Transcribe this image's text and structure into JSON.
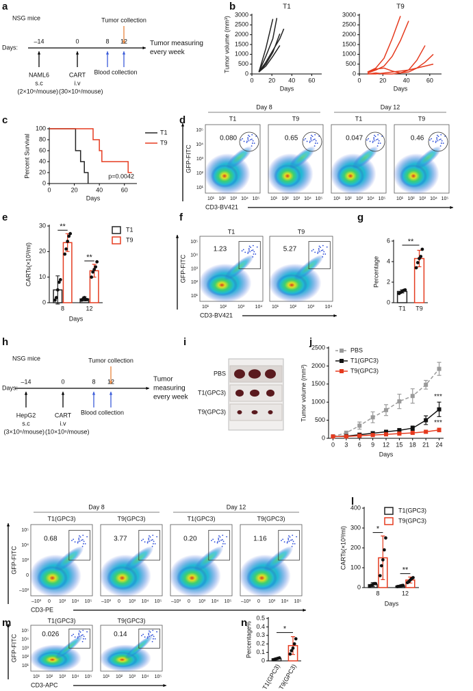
{
  "panel_labels": [
    "a",
    "b",
    "c",
    "d",
    "e",
    "f",
    "g",
    "h",
    "i",
    "j",
    "l",
    "m",
    "n"
  ],
  "timelines": [
    {
      "title": "NSG mice",
      "days_label": "Days:",
      "days": [
        "–14",
        "0",
        "8",
        "12"
      ],
      "injections": [
        {
          "cells": "NAML6",
          "route": "s.c",
          "dose": "(2×10⁶/mouse)"
        },
        {
          "cells": "CART",
          "route": "i.v",
          "dose": "(30×10⁶/mouse)"
        }
      ],
      "blood": "Blood collection",
      "tumor": "Tumor collection",
      "measuring": [
        "Tumor measuring",
        "every week"
      ]
    },
    {
      "title": "NSG mice",
      "days_label": "Days:",
      "days": [
        "–14",
        "0",
        "8",
        "12"
      ],
      "injections": [
        {
          "cells": "HepG2",
          "route": "s.c",
          "dose": "(3×10⁶/mouse)"
        },
        {
          "cells": "CART",
          "route": "i.v",
          "dose": "(10×10⁶/mouse)"
        }
      ],
      "blood": "Blood collection",
      "tumor": "Tumor collection",
      "measuring": [
        "Tumor",
        "measuring",
        "every week"
      ]
    }
  ],
  "tumor_photo": {
    "rows": [
      "PBS",
      "T1(GPC3)",
      "T9(GPC3)"
    ]
  },
  "flow_panels": [
    {
      "groups": [
        {
          "label": "Day 8",
          "columns": [
            "T1",
            "T9"
          ]
        },
        {
          "label": "Day 12",
          "columns": [
            "T1",
            "T9"
          ]
        }
      ],
      "gates": [
        "0.080",
        "0.65",
        "0.047",
        "0.46"
      ],
      "ylabel": "GFP-FITC",
      "xlabel": "CD3-BV421",
      "xticks": [
        "10¹",
        "10²",
        "10³",
        "10⁴",
        "10⁵"
      ],
      "yticks": [
        "10¹",
        "10²",
        "10³",
        "10⁴",
        "10⁵"
      ]
    },
    {
      "columns": [
        "T1",
        "T9"
      ],
      "gates": [
        "1.23",
        "5.27"
      ],
      "ylabel": "GFP-FITC",
      "xlabel": "CD3-BV421",
      "xticks": [
        "10¹",
        "10²",
        "10³",
        "10⁴"
      ],
      "yticks": [
        "10¹",
        "10²",
        "10³",
        "10⁴",
        "10⁵"
      ]
    },
    {
      "groups": [
        {
          "label": "Day 8",
          "columns": [
            "T1(GPC3)",
            "T9(GPC3)"
          ]
        },
        {
          "label": "Day 12",
          "columns": [
            "T1(GPC3)",
            "T9(GPC3)"
          ]
        }
      ],
      "gates": [
        "0.68",
        "3.77",
        "0.20",
        "1.16"
      ],
      "ylabel": "GFP-FITC",
      "xlabel": "CD3-PE",
      "xticks": [
        "–10³",
        "0",
        "10³",
        "10⁴",
        "10⁵"
      ],
      "yticks": [
        "–10³",
        "0",
        "10³",
        "10⁴",
        "10⁵"
      ]
    },
    {
      "columns": [
        "T1(GPC3)",
        "T9(GPC3)"
      ],
      "gates": [
        "0.026",
        "0.14"
      ],
      "ylabel": "GFP-FITC",
      "xlabel": "CD3-APC",
      "xticks": [
        "10¹",
        "10²",
        "10³",
        "10⁴",
        "10⁵"
      ],
      "yticks": [
        "10¹",
        "10²",
        "10³",
        "10⁴",
        "10⁵"
      ]
    }
  ],
  "chart_data": [
    {
      "type": "line",
      "title": "T1",
      "ylabel": "Tumor volume (mm³)",
      "xlabel": "Days",
      "xlim": [
        0,
        70
      ],
      "xticks": [
        0,
        20,
        40,
        60
      ],
      "ylim": [
        0,
        3000
      ],
      "yticks": [
        0,
        500,
        1000,
        1500,
        2000,
        2500,
        3000
      ],
      "series": [
        {
          "color": "#222222",
          "x": [
            7,
            14,
            21
          ],
          "values": [
            100,
            1300,
            2800
          ]
        },
        {
          "color": "#222222",
          "x": [
            7,
            14,
            21,
            25
          ],
          "values": [
            100,
            900,
            1800,
            2850
          ]
        },
        {
          "color": "#222222",
          "x": [
            7,
            14,
            21,
            28,
            32
          ],
          "values": [
            100,
            600,
            1200,
            1800,
            2300
          ]
        },
        {
          "color": "#222222",
          "x": [
            7,
            14,
            21,
            28
          ],
          "values": [
            100,
            500,
            1100,
            2050
          ]
        },
        {
          "color": "#222222",
          "x": [
            7,
            14,
            21,
            28
          ],
          "values": [
            100,
            400,
            900,
            1450
          ]
        }
      ]
    },
    {
      "type": "line",
      "title": "T9",
      "xlabel": "Days",
      "xlim": [
        0,
        70
      ],
      "xticks": [
        0,
        20,
        40,
        60
      ],
      "ylim": [
        0,
        3000
      ],
      "yticks": [
        0,
        500,
        1000,
        1500,
        2000,
        2500,
        3000
      ],
      "series": [
        {
          "color": "#e53a1e",
          "x": [
            7,
            14,
            21,
            28,
            35
          ],
          "values": [
            100,
            300,
            800,
            1800,
            2950
          ]
        },
        {
          "color": "#e53a1e",
          "x": [
            7,
            14,
            21,
            28,
            35,
            42
          ],
          "values": [
            50,
            200,
            400,
            900,
            1700,
            2700
          ]
        },
        {
          "color": "#e53a1e",
          "x": [
            7,
            14,
            21,
            28,
            35,
            42,
            49,
            56
          ],
          "values": [
            100,
            250,
            300,
            150,
            50,
            200,
            700,
            1450
          ]
        },
        {
          "color": "#e53a1e",
          "x": [
            7,
            14,
            21,
            28,
            35,
            42,
            49,
            56,
            63
          ],
          "values": [
            0,
            50,
            0,
            0,
            50,
            100,
            300,
            600,
            1000
          ]
        },
        {
          "color": "#e53a1e",
          "x": [
            7,
            14,
            21,
            28,
            35,
            42,
            49,
            56,
            63
          ],
          "values": [
            0,
            0,
            50,
            100,
            150,
            200,
            300,
            400,
            500
          ]
        }
      ]
    },
    {
      "type": "step",
      "ylabel": "Percent Survival",
      "xlabel": "Days",
      "annotation": "p=0.0042",
      "legend": "right",
      "xlim": [
        0,
        70
      ],
      "xticks": [
        0,
        20,
        40,
        60
      ],
      "ylim": [
        0,
        100
      ],
      "yticks": [
        0,
        20,
        40,
        60,
        80,
        100
      ],
      "series": [
        {
          "name": "T1",
          "color": "#222222",
          "x": [
            0,
            21,
            25,
            28,
            31
          ],
          "values": [
            100,
            60,
            40,
            20,
            0
          ]
        },
        {
          "name": "T9",
          "color": "#e53a1e",
          "x": [
            0,
            35,
            40,
            42,
            63,
            66
          ],
          "values": [
            100,
            80,
            60,
            40,
            20,
            20
          ]
        }
      ]
    },
    {
      "type": "bar",
      "ylabel": "CARTs(×10³/ml)",
      "xlabel": "Days",
      "legend": "right",
      "categories": [
        "8",
        "12"
      ],
      "ylim": [
        0,
        30
      ],
      "yticks": [
        0,
        10,
        20,
        30
      ],
      "annotations": [
        "**",
        "**"
      ],
      "series": [
        {
          "name": "T1",
          "color": "#222222",
          "values": [
            5,
            1.5
          ],
          "errors": [
            5.5,
            0.8
          ],
          "points": [
            [
              1,
              2,
              5,
              8,
              9
            ],
            [
              1,
              1.5,
              2,
              1.3,
              1.2
            ]
          ]
        },
        {
          "name": "T9",
          "color": "#e53a1e",
          "values": [
            23.5,
            12.5
          ],
          "errors": [
            3.5,
            2.5
          ],
          "points": [
            [
              19,
              21,
              24,
              26,
              27
            ],
            [
              10,
              12,
              13,
              14,
              16
            ]
          ]
        }
      ]
    },
    {
      "type": "bar",
      "ylabel": "Percentage",
      "categories": [
        "T1",
        "T9"
      ],
      "colors": [
        "#222222",
        "#e53a1e"
      ],
      "ylim": [
        0,
        6
      ],
      "yticks": [
        0,
        2,
        4,
        6
      ],
      "annotation": "**",
      "values": [
        1.1,
        4.3
      ],
      "errors": [
        0.15,
        0.8
      ],
      "points": [
        [
          0.9,
          1.0,
          1.1,
          1.2,
          1.25
        ],
        [
          3.4,
          3.9,
          4.3,
          4.5,
          5.2
        ]
      ]
    },
    {
      "type": "line",
      "ylabel": "Tumor volume (mm³)",
      "xlabel": "Days",
      "legend": "upper left",
      "xlim": [
        -1,
        25
      ],
      "xticks": [
        0,
        3,
        6,
        9,
        12,
        15,
        18,
        21,
        24
      ],
      "ylim": [
        0,
        2500
      ],
      "yticks": [
        0,
        500,
        1000,
        1500,
        2000,
        2500
      ],
      "x": [
        0,
        3,
        6,
        9,
        12,
        15,
        18,
        21,
        24
      ],
      "annotations": [
        "***",
        "***"
      ],
      "series": [
        {
          "name": "PBS",
          "color": "#9a9a9a",
          "dashed": true,
          "marker": true,
          "values": [
            50,
            150,
            350,
            580,
            780,
            1020,
            1170,
            1480,
            1920
          ],
          "errors": [
            20,
            50,
            100,
            150,
            150,
            200,
            200,
            120,
            180
          ]
        },
        {
          "name": "T1(GPC3)",
          "color": "#111111",
          "marker": true,
          "values": [
            50,
            60,
            100,
            140,
            180,
            220,
            280,
            500,
            800
          ],
          "errors": [
            10,
            20,
            30,
            40,
            40,
            50,
            60,
            120,
            200
          ]
        },
        {
          "name": "T9(GPC3)",
          "color": "#e53a1e",
          "marker": true,
          "values": [
            50,
            50,
            70,
            90,
            110,
            130,
            150,
            180,
            230
          ],
          "errors": [
            10,
            10,
            20,
            20,
            20,
            30,
            30,
            40,
            50
          ]
        }
      ]
    },
    {
      "type": "bar",
      "ylabel": "CARTs(×10³/ml)",
      "xlabel": "Days",
      "legend": "upper right",
      "categories": [
        "8",
        "12"
      ],
      "ylim": [
        0,
        400
      ],
      "yticks": [
        0,
        100,
        200,
        300,
        400
      ],
      "annotations": [
        "*",
        "**"
      ],
      "series": [
        {
          "name": "T1(GPC3)",
          "color": "#222222",
          "values": [
            15,
            8
          ],
          "errors": [
            10,
            3
          ],
          "points": [
            [
              8,
              12,
              15,
              20,
              20
            ],
            [
              5,
              6,
              8,
              10,
              11
            ]
          ]
        },
        {
          "name": "T9(GPC3)",
          "color": "#e53a1e",
          "values": [
            150,
            38
          ],
          "errors": [
            110,
            15
          ],
          "points": [
            [
              60,
              110,
              140,
              190,
              250
            ],
            [
              25,
              30,
              38,
              45,
              50
            ]
          ]
        }
      ]
    },
    {
      "type": "bar",
      "ylabel": "Percentage%",
      "categories": [
        "T1(GPC3)",
        "T9(GPC3)"
      ],
      "colors": [
        "#222222",
        "#e53a1e"
      ],
      "ylim": [
        0,
        0.5
      ],
      "yticks": [
        0,
        0.1,
        0.2,
        0.3,
        0.4,
        0.5
      ],
      "annotation": "*",
      "values": [
        0.025,
        0.18
      ],
      "errors": [
        0.008,
        0.105
      ],
      "points": [
        [
          0.015,
          0.02,
          0.025,
          0.03,
          0.035
        ],
        [
          0.08,
          0.12,
          0.15,
          0.2,
          0.26
        ]
      ]
    }
  ]
}
